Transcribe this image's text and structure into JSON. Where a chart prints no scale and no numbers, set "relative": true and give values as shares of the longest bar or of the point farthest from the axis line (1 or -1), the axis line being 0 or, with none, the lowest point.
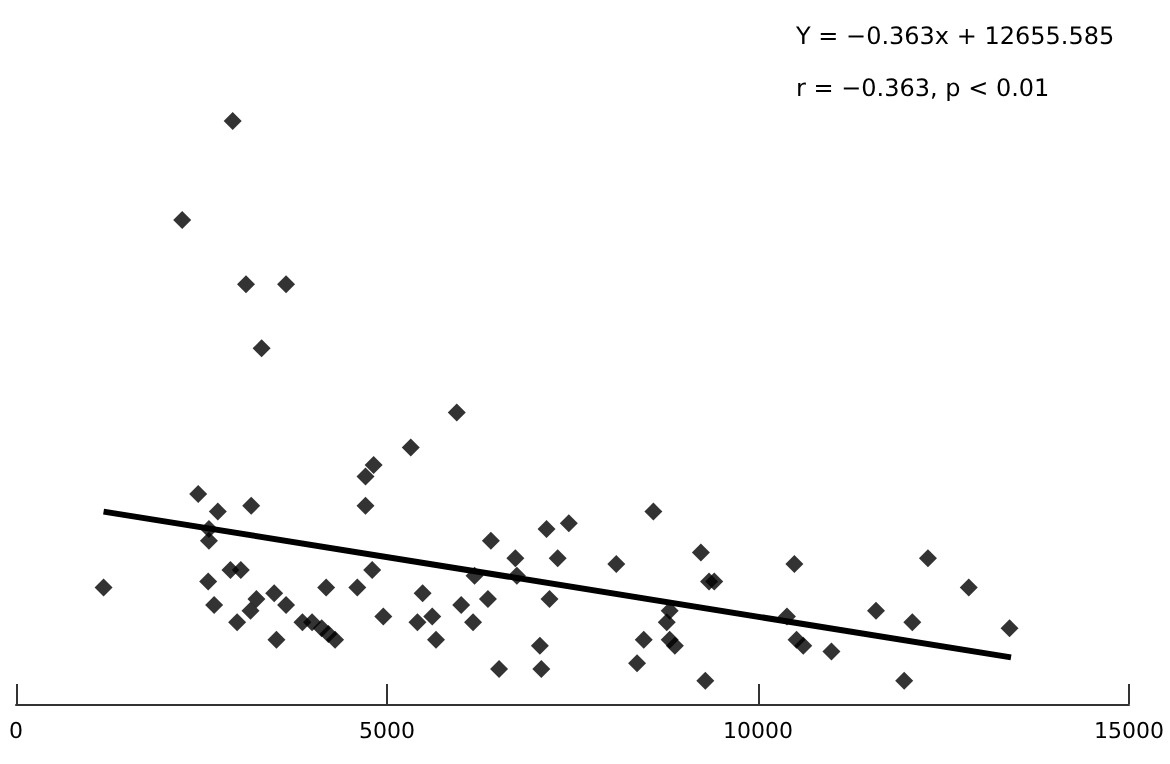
{
  "chart_data": {
    "type": "scatter",
    "relative": true,
    "marker": "diamond",
    "grid": false,
    "annotations": [
      "Y = −0.363x + 12655.585",
      "r = −0.363, p < 0.01"
    ],
    "xlim": [
      0,
      15000
    ],
    "xticks": [
      0,
      5000,
      10000,
      15000
    ],
    "series": [
      {
        "color": "#000000",
        "x": [
          1180,
          2240,
          2920,
          3100,
          3640,
          3310,
          2455,
          2720,
          2600,
          2600,
          2590,
          2670,
          2890,
          3030,
          2980,
          3160,
          3240,
          3170,
          3480,
          3510,
          3640,
          3860,
          3990,
          4120,
          4210,
          4300,
          4180,
          4600,
          4800,
          4950,
          4710,
          4710,
          4820,
          5320,
          5940,
          5480,
          5410,
          5610,
          5660,
          6000,
          6160,
          6180,
          6360,
          6400,
          6510,
          6730,
          6750,
          7060,
          7080,
          7190,
          7150,
          7300,
          7450,
          8090,
          8590,
          9230,
          9340,
          9410,
          8810,
          8770,
          8460,
          8370,
          8810,
          8880,
          9290,
          10490,
          10390,
          10520,
          10610,
          10990,
          11590,
          12080,
          12290,
          12840,
          11970,
          13390
        ],
        "values": [
          0.2,
          0.83,
          1.0,
          0.72,
          0.72,
          0.61,
          0.36,
          0.33,
          0.3,
          0.28,
          0.21,
          0.17,
          0.23,
          0.23,
          0.14,
          0.16,
          0.18,
          0.34,
          0.19,
          0.11,
          0.17,
          0.14,
          0.14,
          0.13,
          0.12,
          0.11,
          0.2,
          0.2,
          0.23,
          0.15,
          0.34,
          0.39,
          0.41,
          0.44,
          0.5,
          0.19,
          0.14,
          0.15,
          0.11,
          0.17,
          0.14,
          0.22,
          0.18,
          0.28,
          0.06,
          0.25,
          0.22,
          0.1,
          0.06,
          0.18,
          0.3,
          0.25,
          0.31,
          0.24,
          0.33,
          0.26,
          0.21,
          0.21,
          0.16,
          0.14,
          0.11,
          0.07,
          0.11,
          0.1,
          0.04,
          0.24,
          0.15,
          0.11,
          0.1,
          0.09,
          0.16,
          0.14,
          0.25,
          0.2,
          0.04,
          0.13
        ]
      },
      {
        "type": "line",
        "color": "#000000",
        "marker": "none",
        "line_style": "solid",
        "x": [
          1180,
          13410
        ],
        "values": [
          0.33,
          0.08
        ]
      }
    ]
  }
}
